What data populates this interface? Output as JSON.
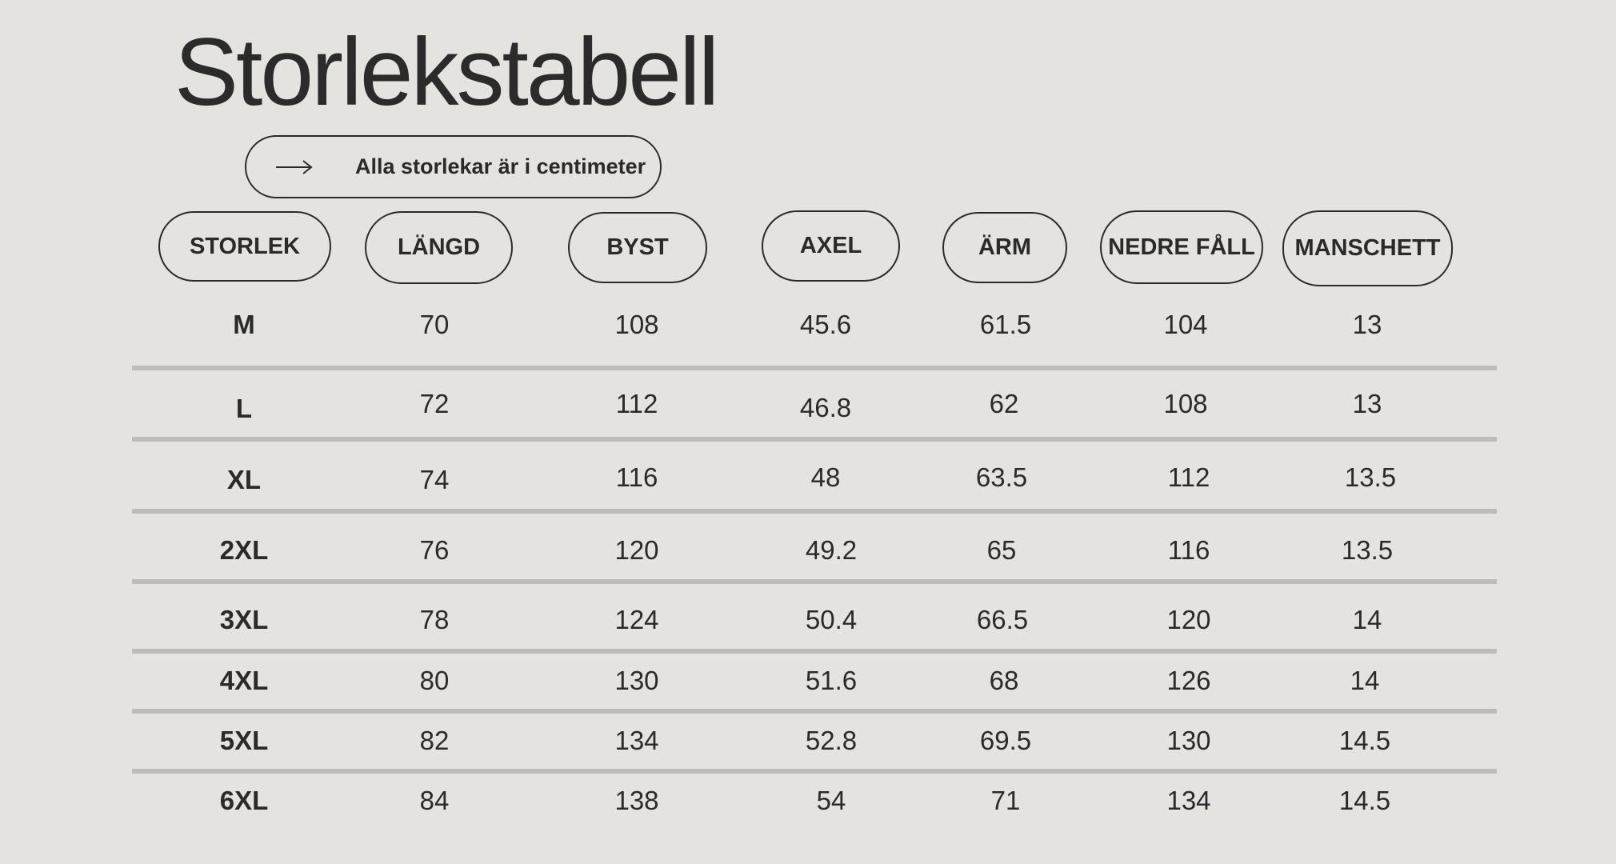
{
  "title": "Storlekstabell",
  "note": {
    "icon": "arrow-right-icon",
    "text": "Alla storlekar är i centimeter"
  },
  "headers": [
    "STORLEK",
    "LÄNGD",
    "BYST",
    "AXEL",
    "ÄRM",
    "NEDRE FÅLL",
    "MANSCHETT"
  ],
  "rows": [
    [
      "M",
      "70",
      "108",
      "45.6",
      "61.5",
      "104",
      "13"
    ],
    [
      "L",
      "72",
      "112",
      "46.8",
      "62",
      "108",
      "13"
    ],
    [
      "XL",
      "74",
      "116",
      "48",
      "63.5",
      "112",
      "13.5"
    ],
    [
      "2XL",
      "76",
      "120",
      "49.2",
      "65",
      "116",
      "13.5"
    ],
    [
      "3XL",
      "78",
      "124",
      "50.4",
      "66.5",
      "120",
      "14"
    ],
    [
      "4XL",
      "80",
      "130",
      "51.6",
      "68",
      "126",
      "14"
    ],
    [
      "5XL",
      "82",
      "134",
      "52.8",
      "69.5",
      "130",
      "14.5"
    ],
    [
      "6XL",
      "84",
      "138",
      "54",
      "71",
      "134",
      "14.5"
    ]
  ],
  "colors": {
    "background": "#e4e3df",
    "text": "#2a2a2a",
    "divider": "#bdbcb8"
  }
}
